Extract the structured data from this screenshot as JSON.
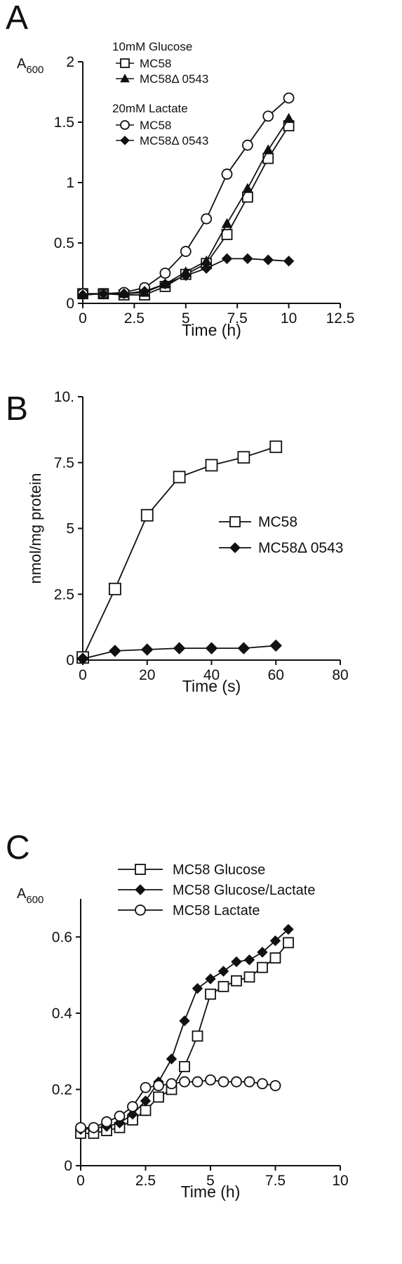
{
  "panels": {
    "a": {
      "letter": "A"
    },
    "b": {
      "letter": "B"
    },
    "c": {
      "letter": "C"
    }
  },
  "chart_data": [
    {
      "id": "A",
      "type": "line",
      "ylabel": "A",
      "ylabel_sub": "600",
      "xlabel": "Time (h)",
      "xlim": [
        0,
        12.5
      ],
      "ylim": [
        0,
        2
      ],
      "xticks": [
        "0",
        "2.5",
        "5",
        "7.5",
        "10",
        "12.5"
      ],
      "yticks": [
        "0",
        "0.5",
        "1",
        "1.5",
        "2"
      ],
      "legend_groups": [
        {
          "title": "10mM Glucose",
          "entries": [
            "MC58",
            "MC58Δ 0543"
          ]
        },
        {
          "title": "20mM Lactate",
          "entries": [
            "MC58",
            "MC58Δ 0543"
          ]
        }
      ],
      "series": [
        {
          "name": "MC58",
          "group": "10mM Glucose",
          "marker": "square-open",
          "x": [
            0,
            1,
            2,
            3,
            4,
            5,
            6,
            7,
            8,
            9,
            10
          ],
          "y": [
            0.08,
            0.08,
            0.07,
            0.07,
            0.14,
            0.24,
            0.33,
            0.57,
            0.88,
            1.2,
            1.47
          ]
        },
        {
          "name": "MC58Δ 0543",
          "group": "10mM Glucose",
          "marker": "triangle-filled",
          "x": [
            0,
            1,
            2,
            3,
            4,
            5,
            6,
            7,
            8,
            9,
            10
          ],
          "y": [
            0.07,
            0.08,
            0.08,
            0.09,
            0.16,
            0.26,
            0.35,
            0.66,
            0.95,
            1.27,
            1.53
          ]
        },
        {
          "name": "MC58",
          "group": "20mM Lactate",
          "marker": "circle-open",
          "x": [
            0,
            1,
            2,
            3,
            4,
            5,
            6,
            7,
            8,
            9,
            10
          ],
          "y": [
            0.08,
            0.08,
            0.09,
            0.13,
            0.25,
            0.43,
            0.7,
            1.07,
            1.31,
            1.55,
            1.7
          ]
        },
        {
          "name": "MC58Δ 0543",
          "group": "20mM Lactate",
          "marker": "diamond-filled",
          "x": [
            0,
            1,
            2,
            3,
            4,
            5,
            6,
            7,
            8,
            9,
            10
          ],
          "y": [
            0.07,
            0.08,
            0.08,
            0.1,
            0.16,
            0.23,
            0.29,
            0.37,
            0.37,
            0.36,
            0.35
          ]
        }
      ]
    },
    {
      "id": "B",
      "type": "line",
      "xlabel": "Time  (s)",
      "ylabel": "nmol/mg protein",
      "xlim": [
        0,
        80
      ],
      "ylim": [
        0,
        10
      ],
      "xticks": [
        "0",
        "20",
        "40",
        "60",
        "80"
      ],
      "yticks": [
        "0",
        "2.5",
        "5",
        "7.5",
        "10."
      ],
      "legend": "right",
      "series": [
        {
          "name": "MC58",
          "marker": "square-open",
          "x": [
            0,
            10,
            20,
            30,
            40,
            50,
            60
          ],
          "y": [
            0.1,
            2.7,
            5.5,
            6.95,
            7.4,
            7.7,
            8.1
          ]
        },
        {
          "name": "MC58Δ 0543",
          "marker": "diamond-filled",
          "x": [
            0,
            10,
            20,
            30,
            40,
            50,
            60
          ],
          "y": [
            0.05,
            0.35,
            0.4,
            0.45,
            0.45,
            0.45,
            0.55
          ]
        }
      ]
    },
    {
      "id": "C",
      "type": "line",
      "ylabel": "A",
      "ylabel_sub": "600",
      "xlabel": "Time (h)",
      "xlim": [
        0,
        10
      ],
      "ylim": [
        0,
        0.7
      ],
      "xticks": [
        "0",
        "2.5",
        "5",
        "7.5",
        "10"
      ],
      "yticks": [
        "0",
        "0.2",
        "0.4",
        "0.6"
      ],
      "legend": "top",
      "series": [
        {
          "name": "MC58 Glucose",
          "marker": "square-open",
          "x": [
            0,
            0.5,
            1,
            1.5,
            2,
            2.5,
            3,
            3.5,
            4,
            4.5,
            5,
            5.5,
            6,
            6.5,
            7,
            7.5,
            8
          ],
          "y": [
            0.085,
            0.085,
            0.092,
            0.1,
            0.12,
            0.145,
            0.18,
            0.2,
            0.26,
            0.34,
            0.45,
            0.47,
            0.485,
            0.495,
            0.52,
            0.545,
            0.585
          ]
        },
        {
          "name": "MC58 Glucose/Lactate",
          "marker": "diamond-filled",
          "x": [
            0,
            0.5,
            1,
            1.5,
            2,
            2.5,
            3,
            3.5,
            4,
            4.5,
            5,
            5.5,
            6,
            6.5,
            7,
            7.5,
            8
          ],
          "y": [
            0.095,
            0.098,
            0.103,
            0.112,
            0.135,
            0.17,
            0.22,
            0.28,
            0.38,
            0.465,
            0.49,
            0.51,
            0.535,
            0.54,
            0.56,
            0.59,
            0.62
          ]
        },
        {
          "name": "MC58 Lactate",
          "marker": "circle-open",
          "x": [
            0,
            0.5,
            1,
            1.5,
            2,
            2.5,
            3,
            3.5,
            4,
            4.5,
            5,
            5.5,
            6,
            6.5,
            7,
            7.5
          ],
          "y": [
            0.1,
            0.1,
            0.115,
            0.13,
            0.155,
            0.205,
            0.21,
            0.215,
            0.22,
            0.22,
            0.225,
            0.22,
            0.22,
            0.22,
            0.215,
            0.21
          ]
        }
      ]
    }
  ]
}
